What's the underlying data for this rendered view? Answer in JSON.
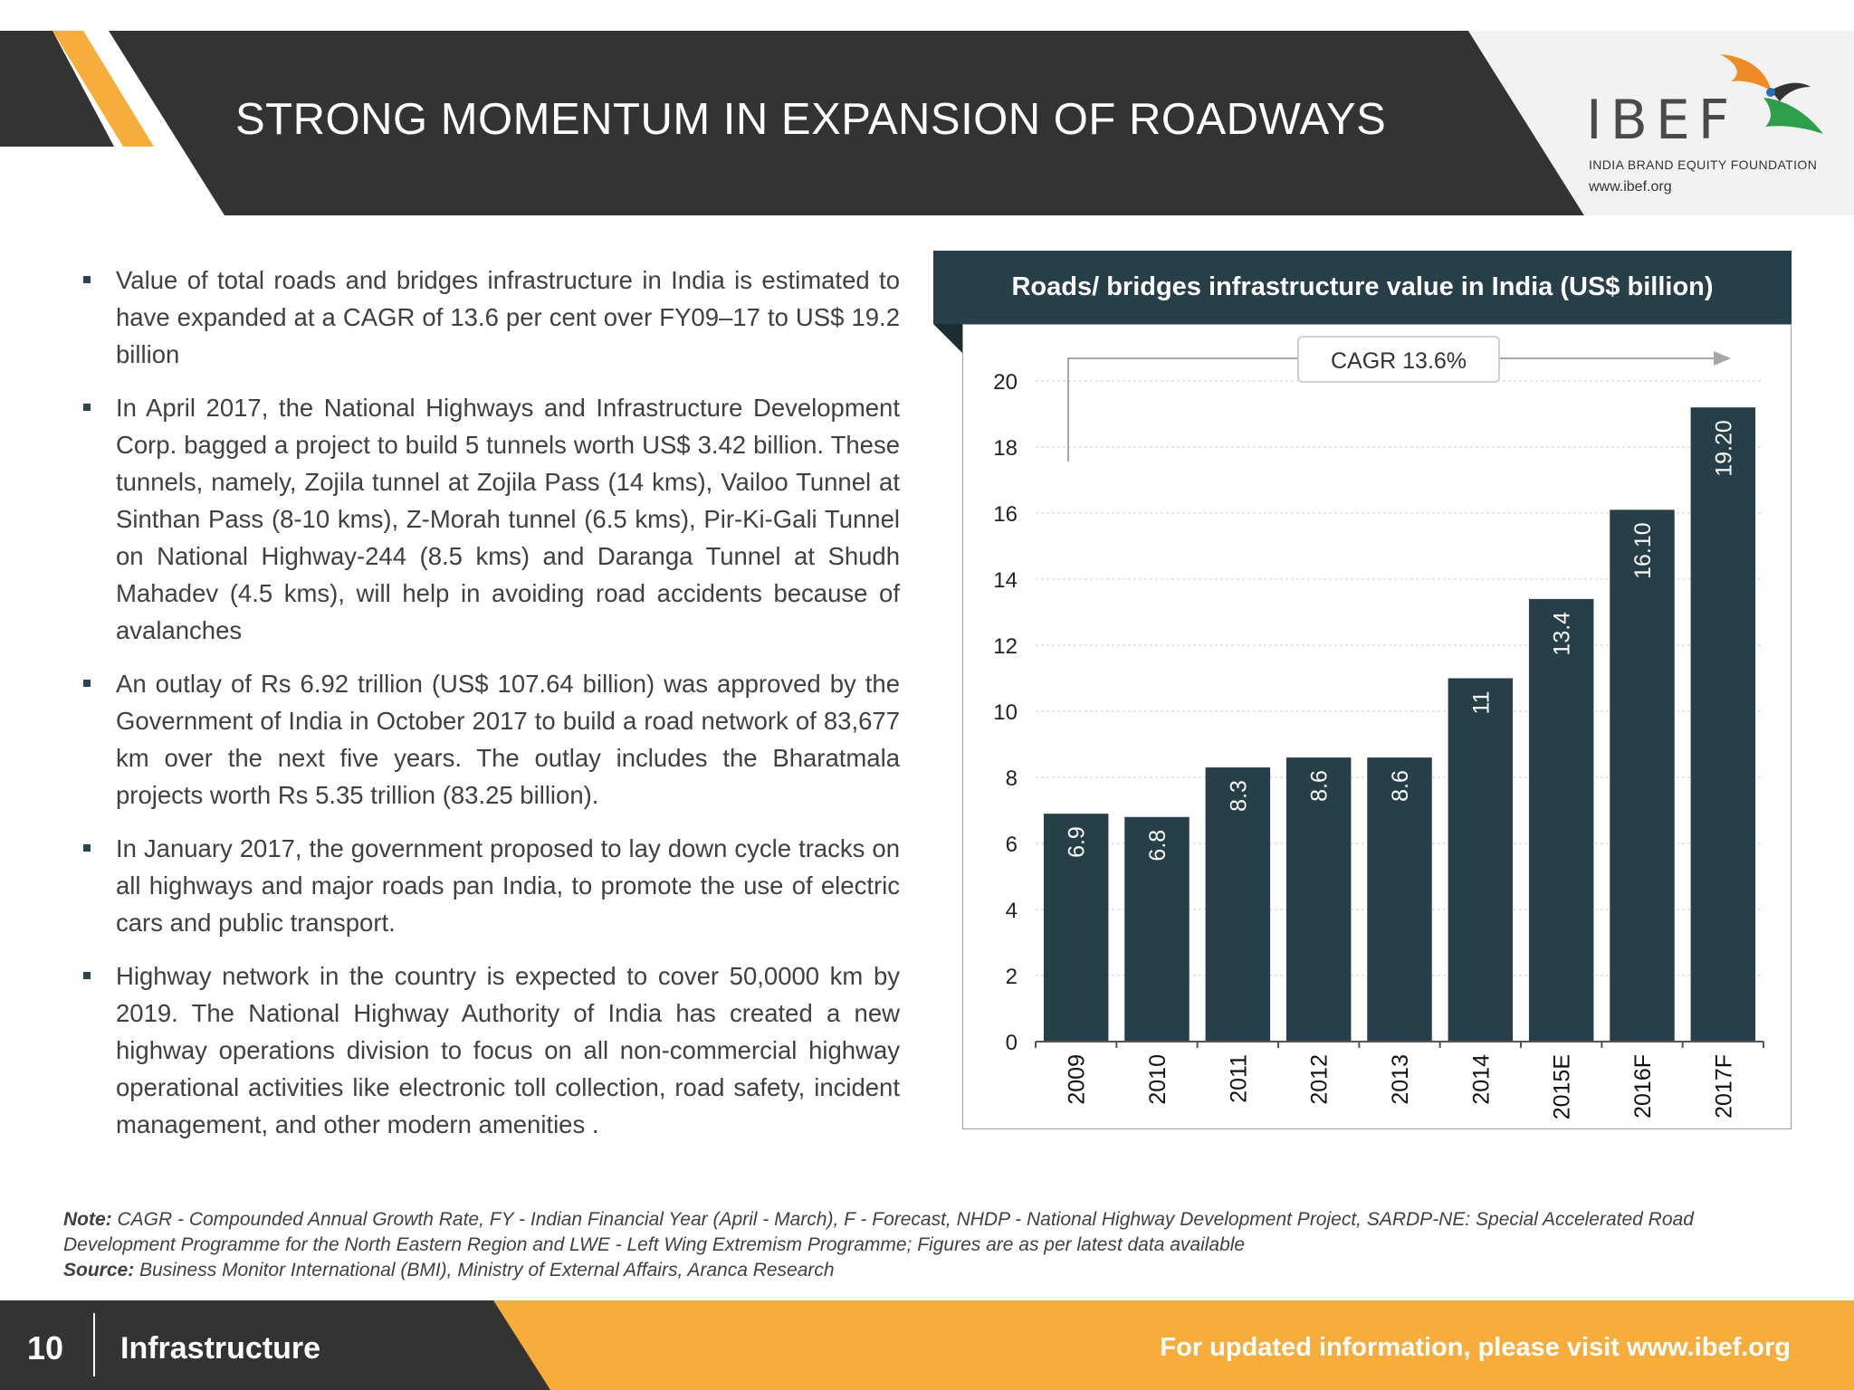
{
  "header": {
    "title": "STRONG MOMENTUM IN EXPANSION OF ROADWAYS",
    "logo_text": "IBEF",
    "logo_subtitle": "INDIA BRAND EQUITY FOUNDATION",
    "logo_url": "www.ibef.org"
  },
  "bullets": [
    "Value of total roads and bridges infrastructure in India is estimated to have expanded at a CAGR of 13.6 per cent over FY09–17 to US$ 19.2 billion",
    "In April 2017, the National Highways and Infrastructure Development Corp. bagged a project to build 5 tunnels worth US$ 3.42 billion. These tunnels, namely, Zojila tunnel at Zojila Pass (14 kms), Vailoo Tunnel at Sinthan Pass (8-10 kms), Z-Morah tunnel (6.5 kms), Pir-Ki-Gali Tunnel on National Highway-244 (8.5 kms) and Daranga Tunnel at Shudh Mahadev (4.5 kms), will help in avoiding road accidents because of avalanches",
    "An outlay of Rs 6.92 trillion (US$ 107.64 billion) was approved by the Government of India in October 2017 to build a road network of 83,677 km over the next five years. The outlay includes the Bharatmala projects worth Rs 5.35 trillion (83.25 billion).",
    "In January 2017, the government proposed to lay down cycle tracks on all highways and major roads pan India, to promote the use of electric  cars and public  transport.",
    "Highway network in the country is expected to cover 50,0000 km by 2019. The National Highway Authority of India has created a new highway operations division to focus on all non-commercial highway operational activities like electronic toll collection, road safety, incident management, and other modern amenities ."
  ],
  "chart_data": {
    "type": "bar",
    "title": "Roads/ bridges infrastructure value in India (US$ billion)",
    "categories": [
      "2009",
      "2010",
      "2011",
      "2012",
      "2013",
      "2014",
      "2015E",
      "2016F",
      "2017F"
    ],
    "values": [
      6.9,
      6.8,
      8.3,
      8.6,
      8.6,
      11,
      13.4,
      16.1,
      19.2
    ],
    "data_labels": [
      "6.9",
      "6.8",
      "8.3",
      "8.6",
      "8.6",
      "11",
      "13.4",
      "16.10",
      "19.20"
    ],
    "ylim": [
      0,
      20
    ],
    "yticks": [
      0,
      2,
      4,
      6,
      8,
      10,
      12,
      14,
      16,
      18,
      20
    ],
    "grid": true,
    "annotation": "CAGR 13.6%",
    "bar_color": "#263f48"
  },
  "notes": {
    "note_label": "Note:",
    "note_text": " CAGR - Compounded Annual Growth Rate, FY - Indian Financial Year (April - March), F - Forecast, NHDP - National Highway Development Project, SARDP-NE: Special Accelerated Road Development Programme for the North Eastern Region and LWE - Left Wing Extremism Programme; Figures are as per latest data available",
    "source_label": "Source:",
    "source_text": " Business Monitor International (BMI), Ministry of External Affairs, Aranca Research"
  },
  "footer": {
    "page_number": "10",
    "section": "Infrastructure",
    "link_text": "For updated information, please visit www.ibef.org"
  },
  "colors": {
    "dark": "#333333",
    "accent_orange": "#f6ad3c",
    "chart_dark": "#263f48"
  }
}
